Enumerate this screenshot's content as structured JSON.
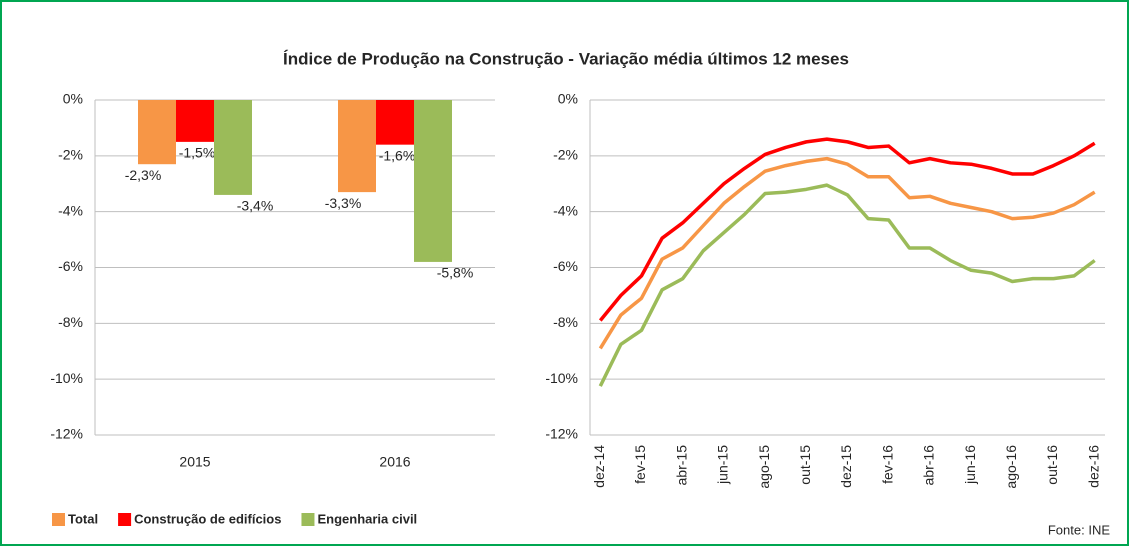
{
  "title": "Índice de Produção na Construção - Variação média últimos 12 meses",
  "source": "Fonte: INE",
  "chart_data": [
    {
      "type": "bar",
      "categories": [
        "2015",
        "2016"
      ],
      "series": [
        {
          "name": "Total",
          "color": "#f79646",
          "values": [
            -2.3,
            -3.3
          ],
          "value_labels": [
            "-2,3%",
            "-3,3%"
          ]
        },
        {
          "name": "Construção de edifícios",
          "color": "#ff0000",
          "values": [
            -1.5,
            -1.6
          ],
          "value_labels": [
            "-1,5%",
            "-1,6%"
          ]
        },
        {
          "name": "Engenharia civil",
          "color": "#9bbb59",
          "values": [
            -3.4,
            -5.8
          ],
          "value_labels": [
            "-3,4%",
            "-5,8%"
          ]
        }
      ],
      "ylim": [
        -12,
        0
      ],
      "yticks": [
        {
          "value": 0,
          "label": "0%"
        },
        {
          "value": -2,
          "label": "-2%"
        },
        {
          "value": -4,
          "label": "-4%"
        },
        {
          "value": -6,
          "label": "-6%"
        },
        {
          "value": -8,
          "label": "-8%"
        },
        {
          "value": -10,
          "label": "-10%"
        },
        {
          "value": -12,
          "label": "-12%"
        }
      ],
      "grid": true,
      "legend": "bottom"
    },
    {
      "type": "line",
      "categories": [
        "dez-14",
        null,
        "fev-15",
        null,
        "abr-15",
        null,
        "jun-15",
        null,
        "ago-15",
        null,
        "out-15",
        null,
        "dez-15",
        null,
        "fev-16",
        null,
        "abr-16",
        null,
        "jun-16",
        null,
        "ago-16",
        null,
        "out-16",
        null,
        "dez-16"
      ],
      "series": [
        {
          "color": "#ff0000",
          "values": [
            -7.9,
            -7.0,
            -6.3,
            -4.95,
            -4.4,
            -3.7,
            -3.0,
            -2.45,
            -1.95,
            -1.7,
            -1.5,
            -1.4,
            -1.5,
            -1.7,
            -1.65,
            -2.25,
            -2.1,
            -2.25,
            -2.3,
            -2.45,
            -2.65,
            -2.65,
            -2.35,
            -2.0,
            -1.55
          ]
        },
        {
          "color": "#f79646",
          "values": [
            -8.9,
            -7.7,
            -7.1,
            -5.7,
            -5.3,
            -4.5,
            -3.7,
            -3.1,
            -2.55,
            -2.35,
            -2.2,
            -2.1,
            -2.3,
            -2.75,
            -2.75,
            -3.5,
            -3.45,
            -3.7,
            -3.85,
            -4.0,
            -4.25,
            -4.2,
            -4.05,
            -3.75,
            -3.3
          ]
        },
        {
          "color": "#9bbb59",
          "values": [
            -10.25,
            -8.75,
            -8.25,
            -6.8,
            -6.4,
            -5.4,
            -4.75,
            -4.1,
            -3.35,
            -3.3,
            -3.2,
            -3.05,
            -3.4,
            -4.25,
            -4.3,
            -5.3,
            -5.3,
            -5.75,
            -6.1,
            -6.2,
            -6.5,
            -6.4,
            -6.4,
            -6.3,
            -5.75
          ]
        }
      ],
      "ylim": [
        -12,
        0
      ],
      "yticks": [
        {
          "value": 0,
          "label": "0%"
        },
        {
          "value": -2,
          "label": "-2%"
        },
        {
          "value": -4,
          "label": "-4%"
        },
        {
          "value": -6,
          "label": "-6%"
        },
        {
          "value": -8,
          "label": "-8%"
        },
        {
          "value": -10,
          "label": "-10%"
        },
        {
          "value": -12,
          "label": "-12%"
        }
      ],
      "grid": true
    }
  ]
}
